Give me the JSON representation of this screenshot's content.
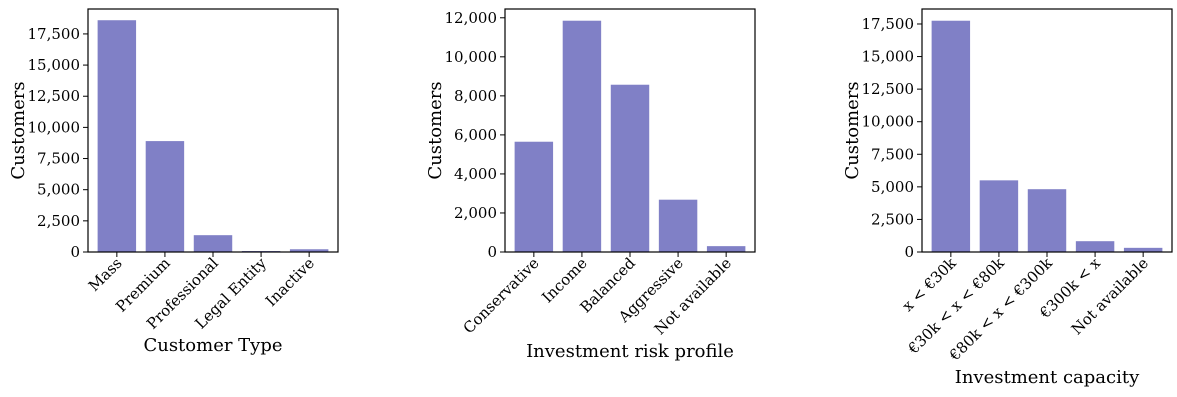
{
  "chart_data": [
    {
      "type": "bar",
      "categories": [
        "Mass",
        "Premium",
        "Professional",
        "Legal Entity",
        "Inactive"
      ],
      "values": [
        18600,
        8900,
        1350,
        80,
        220
      ],
      "title": "",
      "xlabel": "Customer Type",
      "ylabel": "Customers",
      "ylim": [
        0,
        19500
      ],
      "yticks": [
        0,
        2500,
        5000,
        7500,
        10000,
        12500,
        15000,
        17500
      ],
      "ytick_labels": [
        "0",
        "2,500",
        "5,000",
        "7,500",
        "10,000",
        "12,500",
        "15,000",
        "17,500"
      ],
      "bar_color": "#8080c6",
      "grid": false
    },
    {
      "type": "bar",
      "categories": [
        "Conservative",
        "Income",
        "Balanced",
        "Aggressive",
        "Not available"
      ],
      "values": [
        5650,
        11850,
        8570,
        2680,
        300
      ],
      "title": "",
      "xlabel": "Investment risk profile",
      "ylabel": "Customers",
      "ylim": [
        0,
        12450
      ],
      "yticks": [
        0,
        2000,
        4000,
        6000,
        8000,
        10000,
        12000
      ],
      "ytick_labels": [
        "0",
        "2,000",
        "4,000",
        "6,000",
        "8,000",
        "10,000",
        "12,000"
      ],
      "bar_color": "#8080c6",
      "grid": false
    },
    {
      "type": "bar",
      "categories": [
        "x < €30k",
        "€30k < x < €80k",
        "€80k < x < €300k",
        "€300k < x",
        "Not available"
      ],
      "values": [
        17750,
        5500,
        4820,
        830,
        320
      ],
      "title": "",
      "xlabel": "Investment capacity",
      "ylabel": "Customers",
      "ylim": [
        0,
        18650
      ],
      "yticks": [
        0,
        2500,
        5000,
        7500,
        10000,
        12500,
        15000,
        17500
      ],
      "ytick_labels": [
        "0",
        "2,500",
        "5,000",
        "7,500",
        "10,000",
        "12,500",
        "15,000",
        "17,500"
      ],
      "bar_color": "#8080c6",
      "grid": false
    }
  ]
}
